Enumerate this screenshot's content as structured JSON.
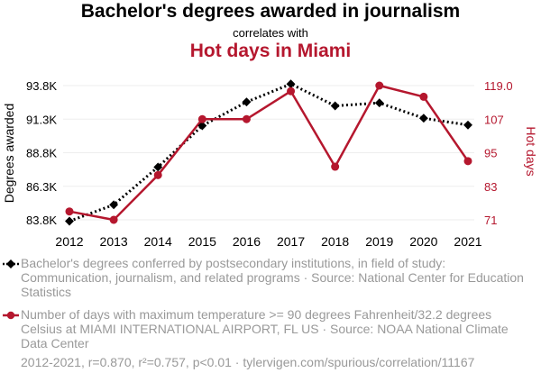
{
  "title": "Bachelor's degrees awarded in journalism",
  "subtitle": "correlates with",
  "title2": "Hot days in Miami",
  "chart_data": {
    "type": "line",
    "categories": [
      "2012",
      "2013",
      "2014",
      "2015",
      "2016",
      "2017",
      "2018",
      "2019",
      "2020",
      "2021"
    ],
    "series": [
      {
        "name": "Bachelor's degrees conferred by postsecondary institutions, in field of study: Communication, journalism, and related programs · Source: National Center for Education Statistics",
        "axis": "left",
        "color": "#000000",
        "values": [
          83700,
          84920,
          87730,
          90810,
          92580,
          93920,
          92290,
          92510,
          91370,
          90860
        ]
      },
      {
        "name": "Number of days with maximum temperature >= 90 degrees Fahrenheit/32.2 degrees Celsius at MIAMI INTERNATIONAL AIRPORT, FL US · Source: NOAA National Climate Data Center",
        "axis": "right",
        "color": "#B5172E",
        "values": [
          74,
          71,
          87,
          107,
          107,
          117,
          90,
          119,
          115,
          92
        ]
      }
    ],
    "ylabel_left": "Degrees awarded",
    "ylabel_right": "Hot days",
    "yticks_left": [
      "83.8K",
      "86.3K",
      "88.8K",
      "91.3K",
      "93.8K"
    ],
    "yticks_right": [
      "71",
      "83",
      "95",
      "107",
      "119.0"
    ],
    "ylim_left": [
      83800,
      93800
    ],
    "ylim_right": [
      71,
      119
    ],
    "grid": true
  },
  "footer": "2012-2021, r=0.870, r²=0.757, p<0.01 · tylervigen.com/spurious/correlation/11167"
}
